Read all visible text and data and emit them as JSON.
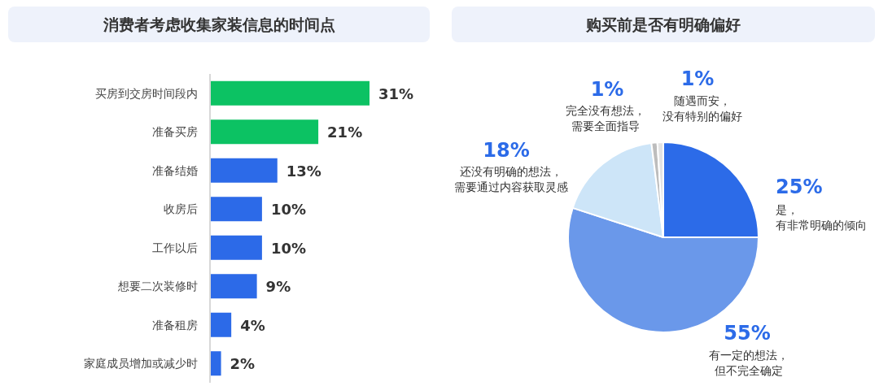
{
  "chart_data": [
    {
      "type": "bar",
      "orientation": "horizontal",
      "title": "消费者考虑收集家装信息的时间点",
      "categories": [
        "买房到交房时间段内",
        "准备买房",
        "准备结婚",
        "收房后",
        "工作以后",
        "想要二次装修时",
        "准备租房",
        "家庭成员增加或减少时"
      ],
      "values": [
        31,
        21,
        13,
        10,
        10,
        9,
        4,
        2
      ],
      "colors": [
        "#0cc263",
        "#0cc263",
        "#2c6ae8",
        "#2c6ae8",
        "#2c6ae8",
        "#2c6ae8",
        "#2c6ae8",
        "#2c6ae8"
      ],
      "value_labels": [
        "31%",
        "21%",
        "13%",
        "10%",
        "10%",
        "9%",
        "4%",
        "2%"
      ]
    },
    {
      "type": "pie",
      "title": "购买前是否有明确偏好",
      "categories": [
        "是，有非常明确的倾向",
        "有一定的想法，但不完全确定",
        "还没有明确的想法，需要通过内容获取灵感",
        "完全没有想法，需要全面指导",
        "随遇而安，没有特别的偏好"
      ],
      "values": [
        25,
        55,
        18,
        1,
        1
      ],
      "colors": [
        "#2c6be8",
        "#6a98ea",
        "#cde5f8",
        "#bdbdbd",
        "#e3e3e3"
      ],
      "value_labels": [
        "25%",
        "55%",
        "18%",
        "1%",
        "1%"
      ]
    }
  ]
}
